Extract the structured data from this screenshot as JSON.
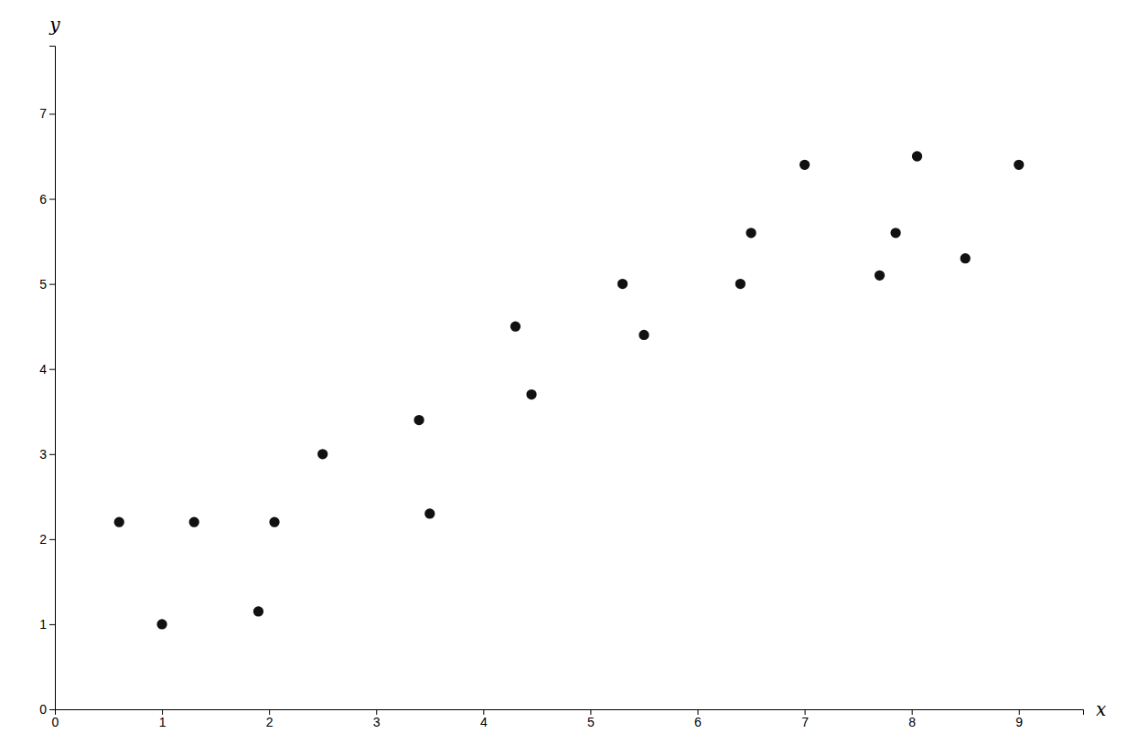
{
  "chart_data": {
    "type": "scatter",
    "x": [
      0.6,
      1.0,
      1.3,
      1.9,
      2.05,
      2.5,
      3.4,
      3.5,
      4.3,
      4.45,
      5.3,
      5.5,
      6.4,
      6.5,
      7.0,
      7.7,
      7.85,
      8.05,
      8.5,
      9.0
    ],
    "y": [
      2.2,
      1.0,
      2.2,
      1.15,
      2.2,
      3.0,
      3.4,
      2.3,
      4.5,
      3.7,
      5.0,
      4.4,
      5.0,
      5.6,
      6.4,
      5.1,
      5.6,
      6.5,
      5.3,
      6.4
    ],
    "x_label": "x",
    "y_label": "y",
    "xlim": [
      0,
      9.6
    ],
    "ylim": [
      0,
      7.8
    ],
    "xticks": [
      0,
      1,
      2,
      3,
      4,
      5,
      6,
      7,
      8,
      9
    ],
    "yticks": [
      0,
      1,
      2,
      3,
      4,
      5,
      6,
      7
    ],
    "color": "#111111",
    "marker": "circle",
    "grid": false
  }
}
